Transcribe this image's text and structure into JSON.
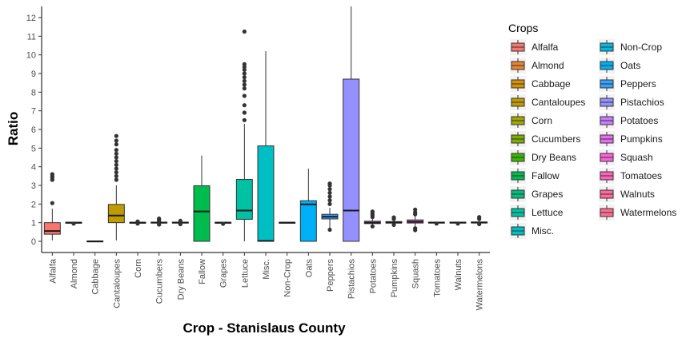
{
  "chart_data": {
    "type": "box",
    "xlabel": "Crop - Stanislaus County",
    "ylabel": "Ratio",
    "ylim": [
      -0.6,
      12.6
    ],
    "yticks": [
      0,
      1,
      2,
      3,
      4,
      5,
      6,
      7,
      8,
      9,
      10,
      11,
      12
    ],
    "grid": false,
    "legend": {
      "title": "Crops",
      "placement": "right"
    },
    "categories": [
      "Alfalfa",
      "Almond",
      "Cabbage",
      "Cantaloupes",
      "Corn",
      "Cucumbers",
      "Dry Beans",
      "Fallow",
      "Grapes",
      "Lettuce",
      "Misc.",
      "Non-Crop",
      "Oats",
      "Peppers",
      "Pistachios",
      "Potatoes",
      "Pumpkins",
      "Squash",
      "Tomatoes",
      "Walnuts",
      "Watermelons"
    ],
    "colors": [
      "#F8766D",
      "#EA8331",
      "#D89000",
      "#C09B00",
      "#A3A500",
      "#7CAE00",
      "#39B600",
      "#00BB4E",
      "#00BF7D",
      "#00C1A3",
      "#00BFC4",
      "#00BAE0",
      "#00B0F6",
      "#35A2FF",
      "#9590FF",
      "#C77CFF",
      "#E76BF3",
      "#FA62DB",
      "#FF62BC",
      "#FF6A98",
      "#FF6C91"
    ],
    "boxes": [
      {
        "name": "Alfalfa",
        "min": 0.05,
        "q1": 0.38,
        "median": 0.55,
        "q3": 1.0,
        "max": 1.75,
        "outliers": [
          2.05,
          3.3,
          3.4,
          3.5,
          3.6
        ]
      },
      {
        "name": "Almond",
        "min": 0.97,
        "q1": 1.0,
        "median": 1.0,
        "q3": 1.02,
        "max": 1.04,
        "outliers": [
          0.95
        ]
      },
      {
        "name": "Cabbage",
        "min": 0.0,
        "q1": 0.0,
        "median": 0.0,
        "q3": 0.02,
        "max": 0.02,
        "outliers": []
      },
      {
        "name": "Cantaloupes",
        "min": 0.05,
        "q1": 1.0,
        "median": 1.38,
        "q3": 1.98,
        "max": 3.0,
        "outliers": [
          3.3,
          3.5,
          3.7,
          3.9,
          4.1,
          4.3,
          4.5,
          4.7,
          4.9,
          5.2,
          5.4,
          5.65
        ]
      },
      {
        "name": "Corn",
        "min": 0.96,
        "q1": 1.0,
        "median": 1.0,
        "q3": 1.02,
        "max": 1.05,
        "outliers": [
          0.95,
          1.06
        ]
      },
      {
        "name": "Cucumbers",
        "min": 0.97,
        "q1": 1.0,
        "median": 1.0,
        "q3": 1.03,
        "max": 1.06,
        "outliers": [
          0.9,
          0.94,
          1.1,
          1.15,
          1.22
        ]
      },
      {
        "name": "Dry Beans",
        "min": 0.97,
        "q1": 1.0,
        "median": 1.0,
        "q3": 1.03,
        "max": 1.06,
        "outliers": [
          0.92,
          0.95,
          1.1
        ]
      },
      {
        "name": "Fallow",
        "min": 0.0,
        "q1": 0.0,
        "median": 1.6,
        "q3": 2.98,
        "max": 4.6,
        "outliers": []
      },
      {
        "name": "Grapes",
        "min": 0.97,
        "q1": 1.0,
        "median": 1.0,
        "q3": 1.02,
        "max": 1.04,
        "outliers": [
          0.94
        ]
      },
      {
        "name": "Lettuce",
        "min": 0.0,
        "q1": 1.18,
        "median": 1.65,
        "q3": 3.32,
        "max": 6.3,
        "outliers": [
          6.5,
          6.9,
          7.3,
          7.8,
          8.2,
          8.4,
          8.6,
          8.8,
          9.0,
          9.2,
          9.35,
          9.5,
          11.25
        ]
      },
      {
        "name": "Misc.",
        "min": 0.0,
        "q1": 0.0,
        "median": 0.02,
        "q3": 5.12,
        "max": 10.2,
        "outliers": []
      },
      {
        "name": "Non-Crop",
        "min": 0.98,
        "q1": 1.0,
        "median": 1.0,
        "q3": 1.02,
        "max": 1.03,
        "outliers": []
      },
      {
        "name": "Oats",
        "min": 0.0,
        "q1": 0.0,
        "median": 1.98,
        "q3": 2.18,
        "max": 3.9,
        "outliers": []
      },
      {
        "name": "Peppers",
        "min": 0.65,
        "q1": 1.2,
        "median": 1.32,
        "q3": 1.45,
        "max": 1.8,
        "outliers": [
          0.62,
          2.0,
          2.2,
          2.4,
          2.6,
          2.8,
          3.0,
          3.1
        ]
      },
      {
        "name": "Pistachios",
        "min": 0.0,
        "q1": 0.0,
        "median": 1.65,
        "q3": 8.7,
        "max": 12.6,
        "outliers": []
      },
      {
        "name": "Potatoes",
        "min": 0.85,
        "q1": 0.95,
        "median": 1.0,
        "q3": 1.08,
        "max": 1.2,
        "outliers": [
          0.8,
          1.3,
          1.4,
          1.5,
          1.6
        ]
      },
      {
        "name": "Pumpkins",
        "min": 0.9,
        "q1": 0.98,
        "median": 1.0,
        "q3": 1.06,
        "max": 1.15,
        "outliers": [
          0.88,
          1.2,
          1.28
        ]
      },
      {
        "name": "Squash",
        "min": 0.8,
        "q1": 0.98,
        "median": 1.05,
        "q3": 1.15,
        "max": 1.35,
        "outliers": [
          0.6,
          0.7,
          1.45,
          1.55,
          1.7
        ]
      },
      {
        "name": "Tomatoes",
        "min": 0.97,
        "q1": 1.0,
        "median": 1.0,
        "q3": 1.03,
        "max": 1.06,
        "outliers": [
          0.95
        ]
      },
      {
        "name": "Walnuts",
        "min": 0.97,
        "q1": 1.0,
        "median": 1.0,
        "q3": 1.03,
        "max": 1.06,
        "outliers": [
          0.95
        ]
      },
      {
        "name": "Watermelons",
        "min": 0.95,
        "q1": 1.0,
        "median": 1.0,
        "q3": 1.04,
        "max": 1.1,
        "outliers": [
          0.92,
          1.2,
          1.3
        ]
      }
    ]
  }
}
